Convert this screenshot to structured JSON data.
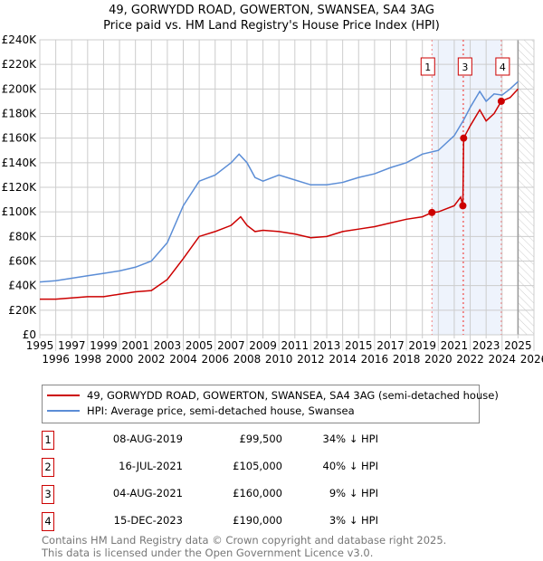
{
  "chart_data": {
    "type": "line",
    "title": "49, GORWYDD ROAD, GOWERTON, SWANSEA, SA4 3AG",
    "subtitle": "Price paid vs. HM Land Registry's House Price Index (HPI)",
    "xlim": [
      1995,
      2026
    ],
    "ylim": [
      0,
      240000
    ],
    "x_ticks": [
      "1995",
      "1996",
      "1997",
      "1998",
      "1999",
      "2000",
      "2001",
      "2002",
      "2003",
      "2004",
      "2005",
      "2006",
      "2007",
      "2008",
      "2009",
      "2010",
      "2011",
      "2012",
      "2013",
      "2014",
      "2015",
      "2016",
      "2017",
      "2018",
      "2019",
      "2020",
      "2021",
      "2022",
      "2023",
      "2024",
      "2025",
      "2026"
    ],
    "y_ticks": [
      "£0",
      "£20K",
      "£40K",
      "£60K",
      "£80K",
      "£100K",
      "£120K",
      "£140K",
      "£160K",
      "£180K",
      "£200K",
      "£220K",
      "£240K"
    ],
    "grid": true,
    "series": [
      {
        "name": "49, GORWYDD ROAD, GOWERTON, SWANSEA, SA4 3AG (semi-detached house)",
        "color": "#cc0000",
        "x": [
          1995,
          1996,
          1997,
          1998,
          1999,
          2000,
          2001,
          2002,
          2003,
          2004,
          2005,
          2006,
          2007,
          2007.6,
          2008,
          2008.5,
          2009,
          2010,
          2011,
          2012,
          2013,
          2014,
          2015,
          2016,
          2017,
          2018,
          2019,
          2019.6,
          2020,
          2021,
          2021.4,
          2021.54,
          2021.59,
          2022,
          2022.6,
          2023,
          2023.5,
          2023.95,
          2024.5,
          2025
        ],
        "y": [
          29000,
          29000,
          30000,
          31000,
          31000,
          33000,
          35000,
          36000,
          45000,
          62000,
          80000,
          84000,
          89000,
          96000,
          89000,
          84000,
          85000,
          84000,
          82000,
          79000,
          80000,
          84000,
          86000,
          88000,
          91000,
          94000,
          96000,
          99500,
          100000,
          105000,
          112000,
          105000,
          160000,
          170000,
          183000,
          174000,
          180000,
          190000,
          193000,
          200000
        ]
      },
      {
        "name": "HPI: Average price, semi-detached house, Swansea",
        "color": "#5b8dd6",
        "x": [
          1995,
          1996,
          1997,
          1998,
          1999,
          2000,
          2001,
          2002,
          2003,
          2004,
          2005,
          2006,
          2007,
          2007.5,
          2008,
          2008.5,
          2009,
          2010,
          2011,
          2012,
          2013,
          2014,
          2015,
          2016,
          2017,
          2018,
          2019,
          2020,
          2021,
          2021.6,
          2022,
          2022.6,
          2023,
          2023.5,
          2024,
          2024.5,
          2025
        ],
        "y": [
          43000,
          44000,
          46000,
          48000,
          50000,
          52000,
          55000,
          60000,
          75000,
          105000,
          125000,
          130000,
          140000,
          147000,
          140000,
          128000,
          125000,
          130000,
          126000,
          122000,
          122000,
          124000,
          128000,
          131000,
          136000,
          140000,
          147000,
          150000,
          162000,
          175000,
          185000,
          198000,
          190000,
          196000,
          195000,
          200000,
          206000
        ]
      }
    ],
    "sales": [
      {
        "label": "1",
        "x": 2019.6,
        "y": 99500,
        "date": "08-AUG-2019",
        "price": "£99,500",
        "hpi": "34% ↓ HPI"
      },
      {
        "label": "2",
        "x": 2021.54,
        "y": 105000,
        "date": "16-JUL-2021",
        "price": "£105,000",
        "hpi": "40% ↓ HPI"
      },
      {
        "label": "3",
        "x": 2021.59,
        "y": 160000,
        "date": "04-AUG-2021",
        "price": "£160,000",
        "hpi": "9% ↓ HPI"
      },
      {
        "label": "4",
        "x": 2023.95,
        "y": 190000,
        "date": "15-DEC-2023",
        "price": "£190,000",
        "hpi": "3% ↓ HPI"
      }
    ],
    "forecast_start": 2025.0
  },
  "footer": [
    "Contains HM Land Registry data © Crown copyright and database right 2025.",
    "This data is licensed under the Open Government Licence v3.0."
  ]
}
